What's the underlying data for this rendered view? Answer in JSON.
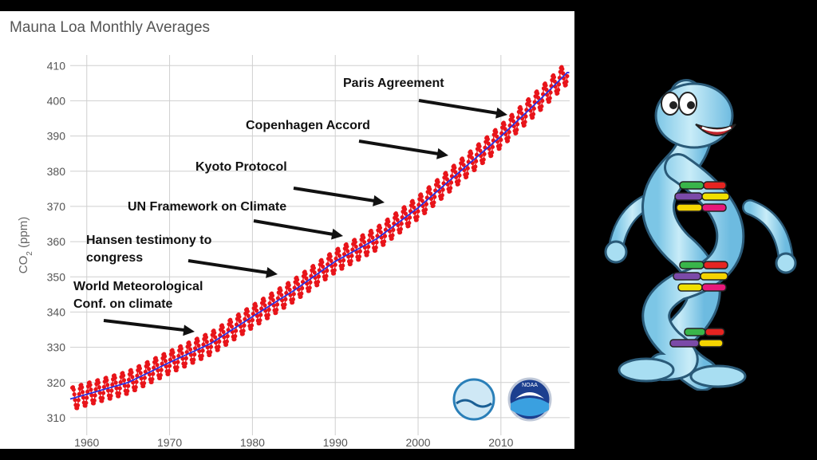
{
  "chart_data": {
    "type": "line",
    "title": "Mauna Loa Monthly Averages",
    "xlabel": "",
    "ylabel_main": "CO",
    "ylabel_sub": "2",
    "ylabel_unit": " (ppm)",
    "xlim": [
      1958,
      2018.3
    ],
    "ylim": [
      305,
      413
    ],
    "xticks": [
      1960,
      1970,
      1980,
      1990,
      2000,
      2010
    ],
    "yticks": [
      310,
      320,
      330,
      340,
      350,
      360,
      370,
      380,
      390,
      400,
      410
    ],
    "grid": true,
    "series": [
      {
        "kind": "monthly",
        "x_start": 1958.25,
        "x_end": 2018.0,
        "seasonal_amplitude_ppm": 3.2,
        "color": "#e8141a"
      },
      {
        "kind": "trend",
        "x": [
          1958,
          1965,
          1970,
          1975,
          1980,
          1985,
          1990,
          1995,
          2000,
          2005,
          2010,
          2015,
          2018
        ],
        "y": [
          315.3,
          320.0,
          325.7,
          331.1,
          338.7,
          346.1,
          354.4,
          360.8,
          369.6,
          379.8,
          389.9,
          401.0,
          408.0
        ],
        "color": "#2b2fe0"
      }
    ],
    "annotations": [
      {
        "lines": [
          "Paris Agreement"
        ],
        "year": 2015
      },
      {
        "lines": [
          "Copenhagen Accord"
        ],
        "year": 2009
      },
      {
        "lines": [
          "Kyoto Protocol"
        ],
        "year": 1997
      },
      {
        "lines": [
          "UN Framework on Climate"
        ],
        "year": 1992
      },
      {
        "lines": [
          "Hansen testimony to",
          "congress"
        ],
        "year": 1988
      },
      {
        "lines": [
          "World Meteorological",
          "Conf. on climate"
        ],
        "year": 1979
      }
    ]
  },
  "logos": {
    "left": "scripps-logo",
    "right": "noaa-logo",
    "right_text": "NOAA"
  },
  "mascot": {
    "icon": "dna-helix-cartoon-icon"
  },
  "colors": {
    "background": "#000000",
    "panel": "#ffffff",
    "grid": "#cfcfcf",
    "monthly": "#e8141a",
    "trend": "#2b2fe0",
    "mascot_body": "#a8def2"
  }
}
